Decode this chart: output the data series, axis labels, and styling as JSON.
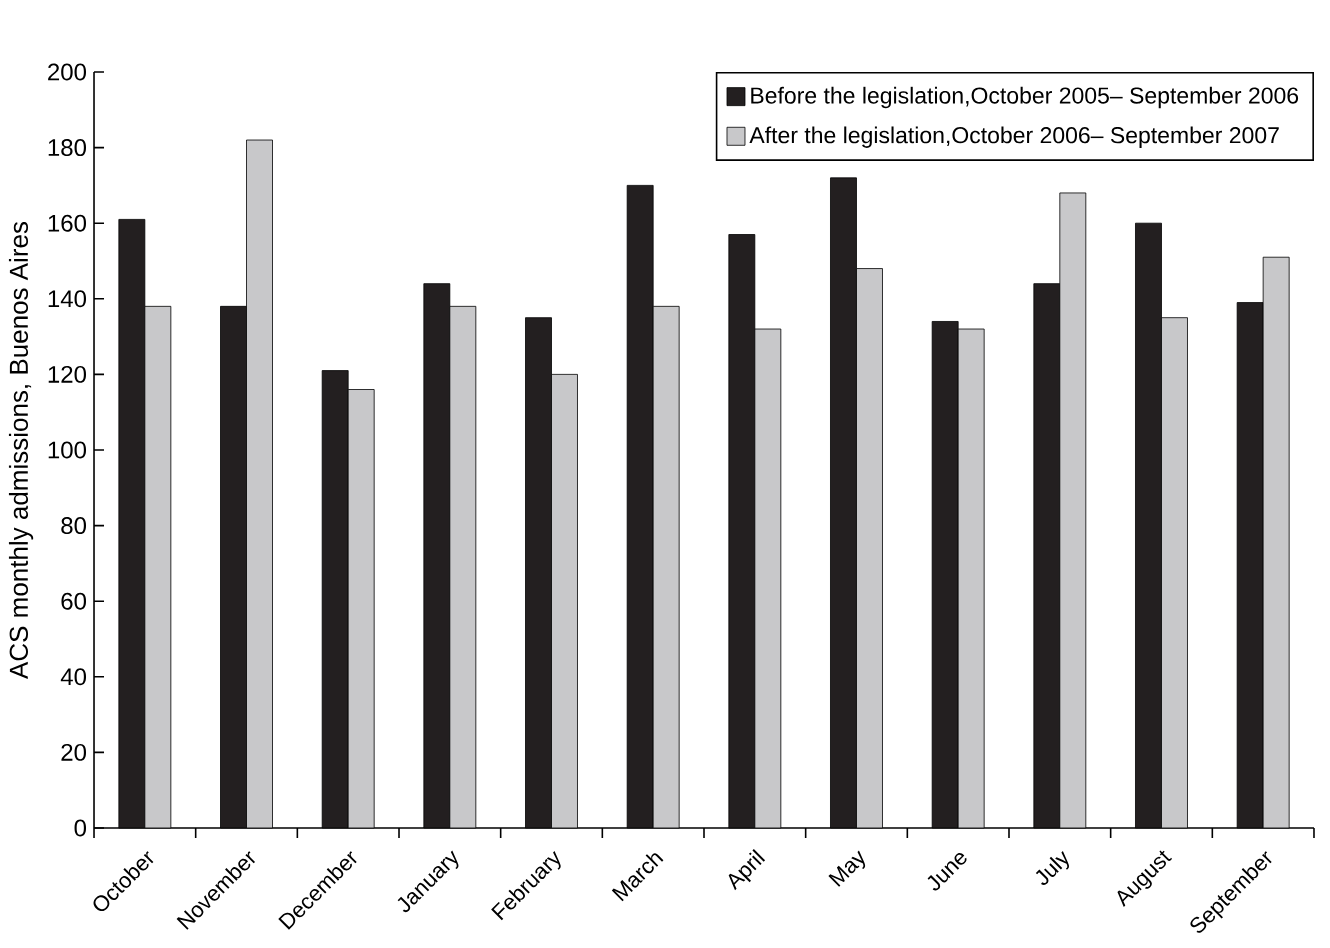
{
  "chart_data": {
    "type": "bar",
    "ylabel": "ACS monthly admissions, Buenos Aires",
    "categories": [
      "October",
      "November",
      "December",
      "January",
      "February",
      "March",
      "April",
      "May",
      "June",
      "July",
      "August",
      "September"
    ],
    "series": [
      {
        "name": "Before the legislation,October 2005– September 2006",
        "color": "#231f20",
        "values": [
          161,
          138,
          121,
          144,
          135,
          170,
          157,
          172,
          134,
          144,
          160,
          139
        ]
      },
      {
        "name": "After the legislation,October 2006– September 2007",
        "color": "#c8c8ca",
        "values": [
          138,
          182,
          116,
          138,
          120,
          138,
          132,
          148,
          132,
          168,
          135,
          151
        ]
      }
    ],
    "ylim": [
      0,
      200
    ],
    "yticks": [
      0,
      20,
      40,
      60,
      80,
      100,
      120,
      140,
      160,
      180,
      200
    ],
    "grid": false,
    "legend": "top right"
  }
}
